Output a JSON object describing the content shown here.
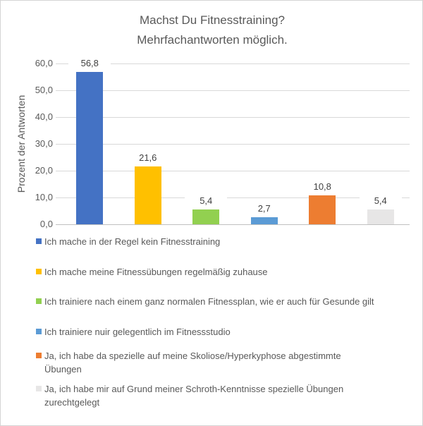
{
  "title": {
    "line1": "Machst Du Fitnesstraining?",
    "line2": "Mehrfachantworten möglich."
  },
  "colors": {
    "gridline": "#d9d9d9",
    "axis_line": "#c0c0c0",
    "title_text": "#595959",
    "axis_text": "#595959",
    "value_label_text": "#404040",
    "legend_text": "#595959",
    "frame_border": "#d4d4d4",
    "background": "#ffffff"
  },
  "chart_data": {
    "type": "bar",
    "title": "Machst Du Fitnesstraining? Mehrfachantworten möglich.",
    "xlabel": "",
    "ylabel": "Prozent der Antworten",
    "ylim": [
      0,
      60
    ],
    "ytick_values": [
      0,
      10,
      20,
      30,
      40,
      50,
      60
    ],
    "ytick_labels": [
      "0,0",
      "10,0",
      "20,0",
      "30,0",
      "40,0",
      "50,0",
      "60,0"
    ],
    "grid": true,
    "legend_position": "bottom-left",
    "categories": [
      "Ich mache in der Regel kein Fitnesstraining",
      "Ich mache meine Fitnessübungen regelmäßig zuhause",
      "Ich trainiere nach einem ganz normalen Fitnessplan, wie er auch für Gesunde gilt",
      "Ich trainiere nuir gelegentlich im Fitnessstudio",
      "Ja, ich habe da spezielle auf meine Skoliose/Hyperkyphose abgestimmte Übungen",
      "Ja, ich habe mir auf Grund meiner Schroth-Kenntnisse spezielle Übungen zurechtgelegt"
    ],
    "values": [
      56.8,
      21.6,
      5.4,
      2.7,
      10.8,
      5.4
    ],
    "value_labels": [
      "56,8",
      "21,6",
      "5,4",
      "2,7",
      "10,8",
      "5,4"
    ],
    "bar_colors": [
      "#4472c4",
      "#ffc000",
      "#92d050",
      "#5b9bd5",
      "#ed7d31",
      "#e7e6e6"
    ]
  },
  "legend": {
    "items": [
      {
        "color": "#4472c4",
        "lines": [
          "Ich mache in der Regel kein Fitnesstraining"
        ]
      },
      {
        "color": "#ffc000",
        "lines": [
          "Ich mache meine Fitnessübungen regelmäßig zuhause"
        ]
      },
      {
        "color": "#92d050",
        "lines": [
          "Ich trainiere nach einem ganz normalen Fitnessplan, wie er auch für Gesunde gilt"
        ]
      },
      {
        "color": "#5b9bd5",
        "lines": [
          "Ich trainiere nuir gelegentlich im Fitnessstudio"
        ]
      },
      {
        "color": "#ed7d31",
        "lines": [
          "Ja, ich habe da spezielle auf meine Skoliose/Hyperkyphose abgestimmte",
          "Übungen"
        ]
      },
      {
        "color": "#e7e6e6",
        "lines": [
          "Ja, ich habe mir auf Grund meiner Schroth-Kenntnisse spezielle Übungen",
          "zurechtgelegt"
        ]
      }
    ]
  }
}
